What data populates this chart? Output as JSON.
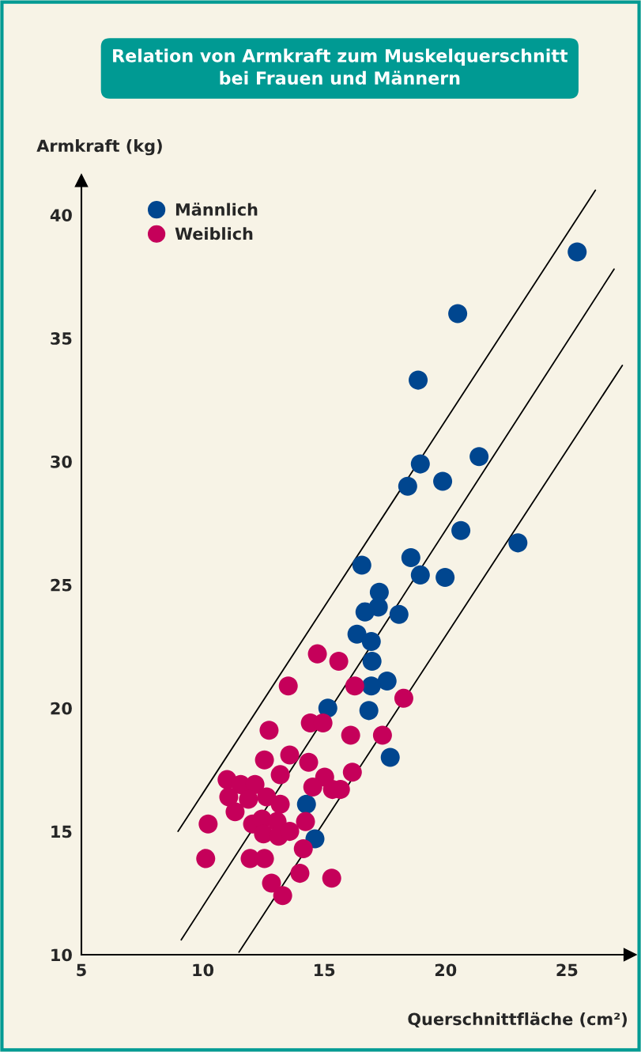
{
  "chart_data": {
    "type": "scatter",
    "title": "Relation von Armkraft zum Muskelquerschnitt\nbei Frauen und Männern",
    "xlabel": "Querschnittfläche (cm²)",
    "ylabel": "Armkraft (kg)",
    "xlim": [
      5,
      27.6
    ],
    "ylim": [
      10,
      41.4
    ],
    "xticks": [
      5,
      10,
      15,
      20,
      25
    ],
    "yticks": [
      10,
      15,
      20,
      25,
      30,
      35,
      40
    ],
    "grid": false,
    "legend": "top left",
    "marker": "circle",
    "series": [
      {
        "name": "Männlich",
        "color": "#00468f",
        "x": [
          25.42,
          20.5,
          18.87,
          18.96,
          21.38,
          19.88,
          18.44,
          20.63,
          22.98,
          18.57,
          16.55,
          18.96,
          19.98,
          17.27,
          17.23,
          16.68,
          18.08,
          16.35,
          16.94,
          16.97,
          17.59,
          16.94,
          15.15,
          16.84,
          17.72,
          14.27,
          14.62
        ],
        "values": [
          38.5,
          36.0,
          33.3,
          29.9,
          30.2,
          29.2,
          29.0,
          27.2,
          26.7,
          26.1,
          25.8,
          25.4,
          25.3,
          24.7,
          24.1,
          23.9,
          23.8,
          23.0,
          22.7,
          21.9,
          21.1,
          20.9,
          20.0,
          19.9,
          18.0,
          16.1,
          14.7
        ]
      },
      {
        "name": "Weiblich",
        "color": "#c5005a",
        "x": [
          14.72,
          15.6,
          13.52,
          16.26,
          18.28,
          12.73,
          14.43,
          14.95,
          16.09,
          17.4,
          13.58,
          12.54,
          14.36,
          16.16,
          13.19,
          11.0,
          11.56,
          12.15,
          15.02,
          14.53,
          15.34,
          15.67,
          11.07,
          11.88,
          12.63,
          13.19,
          11.33,
          10.22,
          14.23,
          12.05,
          12.44,
          13.06,
          12.5,
          13.12,
          13.58,
          14.14,
          10.12,
          11.95,
          12.54,
          14.0,
          15.31,
          12.83,
          13.29
        ],
        "values": [
          22.2,
          21.9,
          20.9,
          20.9,
          20.4,
          19.1,
          19.4,
          19.4,
          18.9,
          18.9,
          18.1,
          17.9,
          17.8,
          17.4,
          17.3,
          17.1,
          16.9,
          16.9,
          17.2,
          16.8,
          16.7,
          16.7,
          16.4,
          16.3,
          16.4,
          16.1,
          15.8,
          15.3,
          15.4,
          15.3,
          15.5,
          15.4,
          14.9,
          14.8,
          15.0,
          14.3,
          13.9,
          13.9,
          13.9,
          13.3,
          13.1,
          12.9,
          12.4
        ]
      },
      {
        "type": "line",
        "marker": "none",
        "color": "#000000",
        "x": [
          8.98,
          26.17
        ],
        "values": [
          15.0,
          41.0
        ]
      },
      {
        "type": "line",
        "marker": "none",
        "color": "#000000",
        "x": [
          9.11,
          26.94
        ],
        "values": [
          10.6,
          37.8
        ]
      },
      {
        "type": "line",
        "marker": "none",
        "color": "#000000",
        "x": [
          11.49,
          27.28
        ],
        "values": [
          10.1,
          33.9
        ]
      }
    ]
  }
}
